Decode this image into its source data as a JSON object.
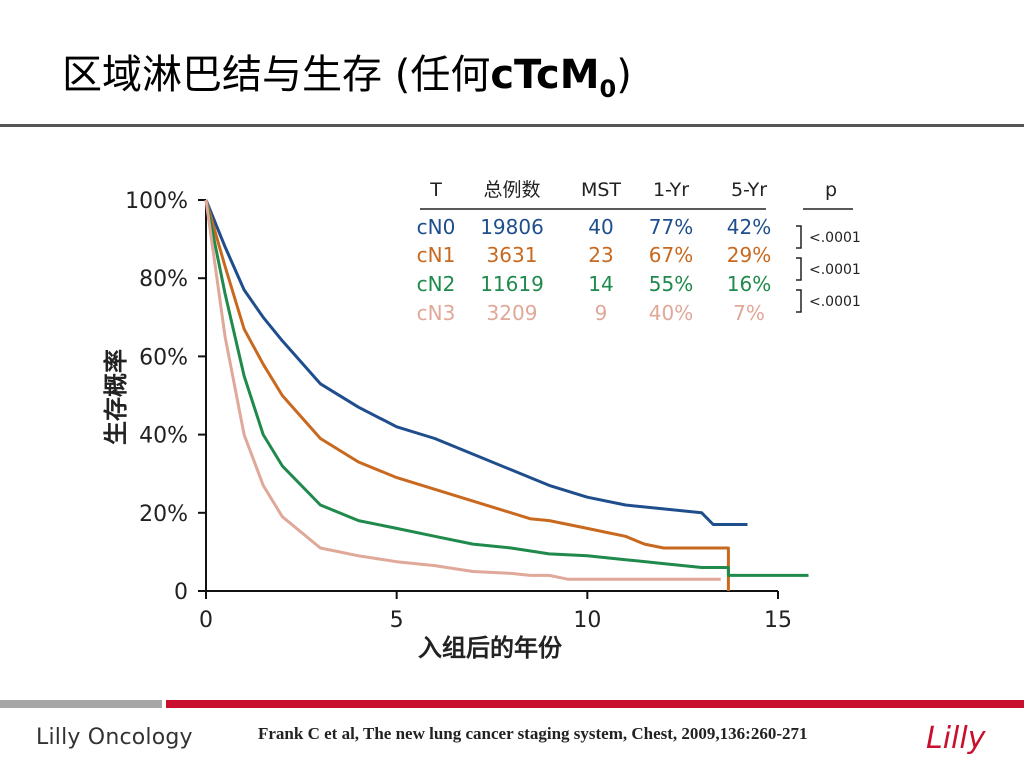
{
  "slide": {
    "title_main": "区域淋巴结与生存 (",
    "title_sub_prefix": "任何",
    "title_code": "cTcM",
    "title_subscript": "0",
    "title_close": ")"
  },
  "footer": {
    "brand": "Lilly Oncology",
    "citation": "Frank C et al, The new lung cancer staging system, Chest, 2009,136:260-271",
    "logo_text": "Lilly"
  },
  "colors": {
    "cN0": "#1f4e8c",
    "cN1": "#c8691f",
    "cN2": "#1f8a4c",
    "cN3": "#e0a898",
    "footer_red": "#c8102e",
    "footer_gray": "#a6a6a6"
  },
  "chart_data": {
    "type": "line",
    "title": "",
    "xlabel": "入组后的年份",
    "ylabel": "生存概率",
    "xlim": [
      0,
      15
    ],
    "ylim": [
      0,
      100
    ],
    "x_ticks": [
      "0",
      "5",
      "10",
      "15"
    ],
    "y_ticks": [
      "0",
      "20%",
      "40%",
      "60%",
      "80%",
      "100%"
    ],
    "table": {
      "headers": [
        "T",
        "总例数",
        "MST",
        "1-Yr",
        "5-Yr",
        "p"
      ],
      "rows": [
        [
          "cN0",
          "19806",
          "40",
          "77%",
          "42%"
        ],
        [
          "cN1",
          "3631",
          "23",
          "67%",
          "29%"
        ],
        [
          "cN2",
          "11619",
          "14",
          "55%",
          "16%"
        ],
        [
          "cN3",
          "3209",
          "9",
          "40%",
          "7%"
        ]
      ],
      "p_values": [
        "<.0001",
        "<.0001",
        "<.0001"
      ]
    },
    "series": [
      {
        "name": "cN0",
        "points": [
          [
            0,
            100
          ],
          [
            0.5,
            88
          ],
          [
            1,
            77
          ],
          [
            1.5,
            70
          ],
          [
            2,
            64
          ],
          [
            3,
            53
          ],
          [
            4,
            47
          ],
          [
            5,
            42
          ],
          [
            6,
            39
          ],
          [
            7,
            35
          ],
          [
            8,
            31
          ],
          [
            9,
            27
          ],
          [
            10,
            24
          ],
          [
            11,
            22
          ],
          [
            12,
            21
          ],
          [
            13,
            20
          ],
          [
            13.3,
            17
          ],
          [
            14.2,
            17
          ]
        ]
      },
      {
        "name": "cN1",
        "points": [
          [
            0,
            100
          ],
          [
            0.5,
            83
          ],
          [
            1,
            67
          ],
          [
            1.5,
            58
          ],
          [
            2,
            50
          ],
          [
            3,
            39
          ],
          [
            4,
            33
          ],
          [
            5,
            29
          ],
          [
            6,
            26
          ],
          [
            7,
            23
          ],
          [
            8,
            20
          ],
          [
            8.5,
            18.5
          ],
          [
            9,
            18
          ],
          [
            9.5,
            17
          ],
          [
            10,
            16
          ],
          [
            10.5,
            15
          ],
          [
            11,
            14
          ],
          [
            11.5,
            12
          ],
          [
            12,
            11
          ],
          [
            13,
            11
          ],
          [
            13.7,
            11
          ],
          [
            13.7,
            0
          ]
        ]
      },
      {
        "name": "cN2",
        "points": [
          [
            0,
            100
          ],
          [
            0.5,
            76
          ],
          [
            1,
            55
          ],
          [
            1.5,
            40
          ],
          [
            2,
            32
          ],
          [
            3,
            22
          ],
          [
            4,
            18
          ],
          [
            5,
            16
          ],
          [
            6,
            14
          ],
          [
            7,
            12
          ],
          [
            8,
            11
          ],
          [
            9,
            9.5
          ],
          [
            10,
            9
          ],
          [
            11,
            8
          ],
          [
            12,
            7
          ],
          [
            13,
            6
          ],
          [
            13.7,
            6
          ],
          [
            13.7,
            4
          ],
          [
            15.8,
            4
          ]
        ]
      },
      {
        "name": "cN3",
        "points": [
          [
            0,
            100
          ],
          [
            0.5,
            65
          ],
          [
            1,
            40
          ],
          [
            1.5,
            27
          ],
          [
            2,
            19
          ],
          [
            3,
            11
          ],
          [
            4,
            9
          ],
          [
            5,
            7.5
          ],
          [
            6,
            6.5
          ],
          [
            7,
            5
          ],
          [
            8,
            4.5
          ],
          [
            8.5,
            4
          ],
          [
            9,
            4
          ],
          [
            9.5,
            3
          ],
          [
            10,
            3
          ],
          [
            11,
            3
          ],
          [
            12,
            3
          ],
          [
            13.5,
            3
          ]
        ]
      }
    ]
  }
}
